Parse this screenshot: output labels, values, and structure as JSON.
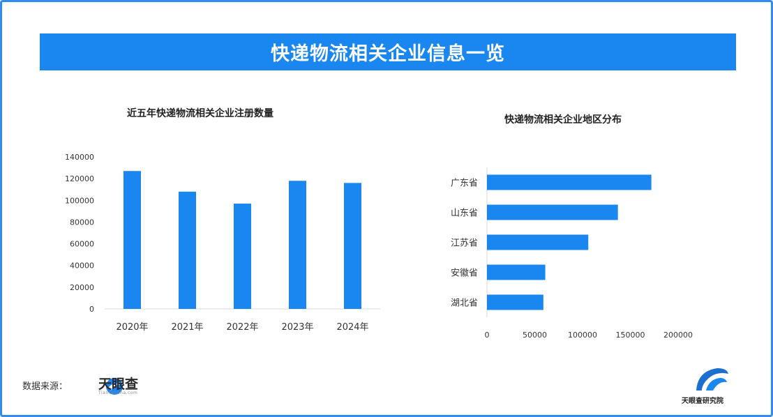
{
  "banner": {
    "title": "快递物流相关企业信息一览"
  },
  "colors": {
    "bar": "#1a86f0",
    "frame": "#2f8cf0",
    "banner": "#1a86f0"
  },
  "chart_data": [
    {
      "type": "bar",
      "title": "近五年快递物流相关企业注册数量",
      "categories": [
        "2020年",
        "2021年",
        "2022年",
        "2023年",
        "2024年"
      ],
      "values": [
        127000,
        108000,
        97000,
        118000,
        116000
      ],
      "ylim": [
        0,
        140000
      ],
      "yticks": [
        "0",
        "20000",
        "40000",
        "60000",
        "80000",
        "100000",
        "120000",
        "140000"
      ],
      "xlabel": "",
      "ylabel": "",
      "grid": false
    },
    {
      "type": "bar",
      "orientation": "horizontal",
      "title": "快递物流相关企业地区分布",
      "categories": [
        "广东省",
        "山东省",
        "江苏省",
        "安徽省",
        "湖北省"
      ],
      "values": [
        172000,
        137000,
        106000,
        61000,
        59000
      ],
      "xlim": [
        0,
        200000
      ],
      "xticks": [
        "0",
        "50000",
        "100000",
        "150000",
        "200000"
      ],
      "xlabel": "",
      "ylabel": "",
      "grid": false
    }
  ],
  "footer": {
    "source_label": "数据来源：",
    "source_logo_text": "天眼查",
    "source_logo_sub": "TianYanCha.com",
    "research_logo_text": "天眼查研究院"
  }
}
